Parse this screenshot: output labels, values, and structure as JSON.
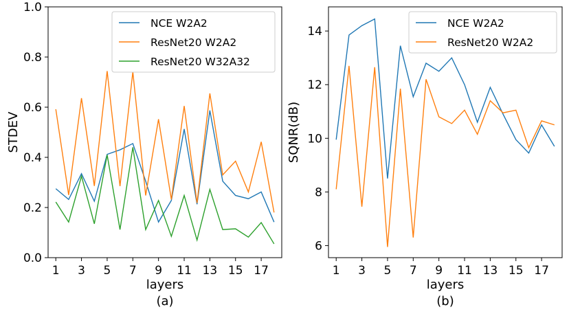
{
  "chart_data": [
    {
      "type": "line",
      "panel": "a",
      "caption": "(a)",
      "xlabel": "layers",
      "ylabel": "STDEV",
      "x": [
        1,
        2,
        3,
        4,
        5,
        6,
        7,
        8,
        9,
        10,
        11,
        12,
        13,
        14,
        15,
        16,
        17,
        18
      ],
      "xticks": [
        1,
        3,
        5,
        7,
        9,
        11,
        13,
        15,
        17
      ],
      "xtick_labels": [
        "1",
        "3",
        "5",
        "7",
        "9",
        "11",
        "13",
        "15",
        "17"
      ],
      "xlim": [
        0.4,
        18.6
      ],
      "ylim": [
        0.0,
        1.0
      ],
      "yticks": [
        0.0,
        0.2,
        0.4,
        0.6,
        0.8,
        1.0
      ],
      "ytick_labels": [
        "0.0",
        "0.2",
        "0.4",
        "0.6",
        "0.8",
        "1.0"
      ],
      "legend_position": "top-right",
      "series": [
        {
          "name": "NCE W2A2",
          "color": "#1f77b4",
          "values": [
            0.275,
            0.232,
            0.335,
            0.225,
            0.412,
            0.43,
            0.455,
            0.305,
            0.142,
            0.228,
            0.513,
            0.213,
            0.587,
            0.305,
            0.248,
            0.235,
            0.262,
            0.142
          ]
        },
        {
          "name": "ResNet20 W2A2",
          "color": "#ff7f0e",
          "values": [
            0.592,
            0.25,
            0.636,
            0.286,
            0.744,
            0.285,
            0.741,
            0.248,
            0.552,
            0.232,
            0.605,
            0.218,
            0.655,
            0.33,
            0.385,
            0.262,
            0.462,
            0.18
          ]
        },
        {
          "name": "ResNet20 W32A32",
          "color": "#2ca02c",
          "values": [
            0.222,
            0.142,
            0.325,
            0.135,
            0.41,
            0.112,
            0.44,
            0.112,
            0.228,
            0.085,
            0.248,
            0.07,
            0.272,
            0.112,
            0.115,
            0.082,
            0.14,
            0.055
          ]
        }
      ]
    },
    {
      "type": "line",
      "panel": "b",
      "caption": "(b)",
      "xlabel": "layers",
      "ylabel": "SQNR(dB)",
      "x": [
        1,
        2,
        3,
        4,
        5,
        6,
        7,
        8,
        9,
        10,
        11,
        12,
        13,
        14,
        15,
        16,
        17,
        18
      ],
      "xticks": [
        1,
        3,
        5,
        7,
        9,
        11,
        13,
        15,
        17
      ],
      "xtick_labels": [
        "1",
        "3",
        "5",
        "7",
        "9",
        "11",
        "13",
        "15",
        "17"
      ],
      "xlim": [
        0.4,
        18.6
      ],
      "ylim": [
        5.55,
        14.9
      ],
      "yticks": [
        6,
        8,
        10,
        12,
        14
      ],
      "ytick_labels": [
        "6",
        "8",
        "10",
        "12",
        "14"
      ],
      "legend_position": "top-right",
      "series": [
        {
          "name": "NCE W2A2",
          "color": "#1f77b4",
          "values": [
            9.95,
            13.85,
            14.2,
            14.45,
            8.5,
            13.45,
            11.55,
            12.8,
            12.5,
            13.0,
            12.0,
            10.6,
            11.9,
            10.9,
            9.95,
            9.45,
            10.5,
            9.7
          ]
        },
        {
          "name": "ResNet20 W2A2",
          "color": "#ff7f0e",
          "values": [
            8.1,
            12.7,
            7.45,
            12.65,
            5.95,
            11.85,
            6.3,
            12.2,
            10.8,
            10.55,
            11.05,
            10.15,
            11.4,
            10.95,
            11.05,
            9.65,
            10.65,
            10.5
          ]
        }
      ]
    }
  ]
}
